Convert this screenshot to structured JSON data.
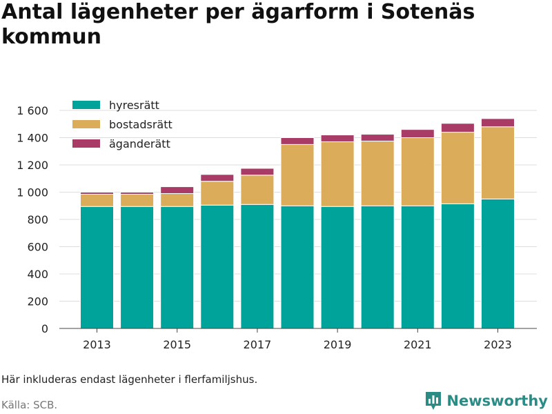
{
  "title": "Antal lägenheter per ägarform i Sotenäs kommun",
  "note": "Här inkluderas endast lägenheter i flerfamiljshus.",
  "source": "Källa: SCB.",
  "brand": {
    "name": "Newsworthy",
    "icon": "bar-chart-logo-icon",
    "color": "#2a8c84"
  },
  "chart_data": {
    "type": "bar",
    "stacked": true,
    "categories": [
      "2013",
      "2014",
      "2015",
      "2016",
      "2017",
      "2018",
      "2019",
      "2020",
      "2021",
      "2022",
      "2023"
    ],
    "x_tick_labels": [
      "2013",
      "2015",
      "2017",
      "2019",
      "2021",
      "2023"
    ],
    "ylim": [
      0,
      1600
    ],
    "y_ticks": [
      0,
      200,
      400,
      600,
      800,
      1000,
      1200,
      1400,
      1600
    ],
    "y_tick_labels": [
      "0",
      "200",
      "400",
      "600",
      "800",
      "1 000",
      "1 200",
      "1 400",
      "1 600"
    ],
    "grid": true,
    "legend_position": "top-left",
    "series": [
      {
        "name": "hyresrätt",
        "color": "#00a39a",
        "values": [
          895,
          895,
          895,
          905,
          910,
          900,
          895,
          900,
          900,
          915,
          950
        ]
      },
      {
        "name": "bostadsrätt",
        "color": "#dbad5b",
        "values": [
          90,
          90,
          95,
          175,
          215,
          450,
          475,
          475,
          500,
          525,
          530
        ]
      },
      {
        "name": "äganderätt",
        "color": "#a83c66",
        "values": [
          15,
          15,
          50,
          50,
          50,
          50,
          50,
          50,
          60,
          65,
          60
        ]
      }
    ]
  }
}
